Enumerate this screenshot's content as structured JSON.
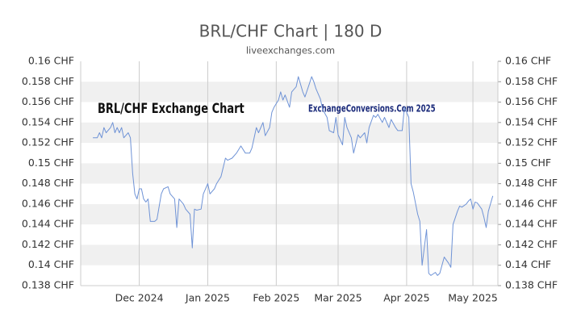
{
  "chart_data": {
    "type": "line",
    "title": "BRL/CHF Chart | 180 D",
    "subtitle": "liveexchanges.com",
    "annotations": [
      "BRL/CHF Exchange Chart",
      "ExchangeConversions.Com 2025"
    ],
    "xlim": [
      3.5,
      192.3
    ],
    "xticks": [
      {
        "value": 30,
        "label": "Dec 2024"
      },
      {
        "value": 61,
        "label": "Jan 2025"
      },
      {
        "value": 92,
        "label": "Feb 2025"
      },
      {
        "value": 120,
        "label": "Mar 2025"
      },
      {
        "value": 151,
        "label": "Apr 2025"
      },
      {
        "value": 181,
        "label": "May 2025"
      }
    ],
    "ylim": [
      0.138,
      0.16
    ],
    "yticks": [
      {
        "value": 0.138,
        "label": "0.138 CHF"
      },
      {
        "value": 0.14,
        "label": "0.14 CHF"
      },
      {
        "value": 0.142,
        "label": "0.142 CHF"
      },
      {
        "value": 0.144,
        "label": "0.144 CHF"
      },
      {
        "value": 0.146,
        "label": "0.146 CHF"
      },
      {
        "value": 0.148,
        "label": "0.148 CHF"
      },
      {
        "value": 0.15,
        "label": "0.15 CHF"
      },
      {
        "value": 0.152,
        "label": "0.152 CHF"
      },
      {
        "value": 0.154,
        "label": "0.154 CHF"
      },
      {
        "value": 0.156,
        "label": "0.156 CHF"
      },
      {
        "value": 0.158,
        "label": "0.158 CHF"
      },
      {
        "value": 0.16,
        "label": "0.16 CHF"
      }
    ],
    "grid": true,
    "color": "#6f93d6",
    "x": [
      9,
      11,
      12,
      13,
      14,
      15,
      17,
      18,
      19,
      20,
      21,
      22,
      23,
      25,
      26,
      27,
      28,
      29,
      30,
      31,
      32,
      33,
      34,
      35,
      37,
      38,
      40,
      41,
      43,
      44,
      46,
      47,
      48,
      50,
      51,
      53,
      54,
      55,
      56,
      58,
      59,
      61,
      62,
      64,
      65,
      67,
      69,
      70,
      72,
      74,
      76,
      78,
      80,
      81,
      83,
      84,
      86,
      87,
      89,
      90,
      91,
      93,
      94,
      95,
      96,
      98,
      99,
      101,
      102,
      104,
      105,
      107,
      108,
      109,
      110,
      112,
      113,
      115,
      116,
      118,
      119,
      120,
      122,
      123,
      124,
      126,
      127,
      129,
      130,
      132,
      133,
      134,
      136,
      137,
      138,
      140,
      141,
      143,
      144,
      146,
      147,
      149,
      150,
      152,
      153,
      154,
      156,
      157,
      158,
      160,
      161,
      162,
      164,
      165,
      166,
      168,
      169,
      170,
      171,
      172,
      174,
      175,
      176,
      178,
      179,
      180,
      181,
      182,
      183,
      185,
      186,
      187,
      188,
      190
    ],
    "values": [
      0.1525,
      0.1525,
      0.153,
      0.1525,
      0.1535,
      0.153,
      0.1535,
      0.154,
      0.153,
      0.1535,
      0.153,
      0.1535,
      0.1525,
      0.153,
      0.1525,
      0.149,
      0.147,
      0.1465,
      0.1475,
      0.1475,
      0.1465,
      0.1462,
      0.1465,
      0.1443,
      0.1443,
      0.1445,
      0.147,
      0.1475,
      0.1477,
      0.147,
      0.1465,
      0.1437,
      0.1465,
      0.146,
      0.1455,
      0.145,
      0.1417,
      0.1455,
      0.1454,
      0.1455,
      0.147,
      0.148,
      0.147,
      0.1475,
      0.148,
      0.1487,
      0.1505,
      0.1503,
      0.1505,
      0.151,
      0.1517,
      0.151,
      0.151,
      0.1515,
      0.1535,
      0.153,
      0.154,
      0.1527,
      0.1535,
      0.155,
      0.1555,
      0.1562,
      0.157,
      0.1562,
      0.1567,
      0.1555,
      0.157,
      0.1575,
      0.1585,
      0.157,
      0.1565,
      0.1578,
      0.1585,
      0.158,
      0.1573,
      0.1563,
      0.1553,
      0.1545,
      0.1532,
      0.153,
      0.1545,
      0.1528,
      0.1518,
      0.1545,
      0.1535,
      0.1525,
      0.151,
      0.1528,
      0.1525,
      0.153,
      0.152,
      0.1535,
      0.1547,
      0.1545,
      0.1548,
      0.154,
      0.1545,
      0.1535,
      0.1543,
      0.1535,
      0.1532,
      0.1532,
      0.1555,
      0.1545,
      0.148,
      0.1472,
      0.145,
      0.1443,
      0.14,
      0.1435,
      0.1392,
      0.139,
      0.1393,
      0.139,
      0.1392,
      0.1408,
      0.1405,
      0.1402,
      0.1398,
      0.144,
      0.1453,
      0.1458,
      0.1457,
      0.146,
      0.1463,
      0.1465,
      0.1455,
      0.1462,
      0.1461,
      0.1455,
      0.1447,
      0.1437,
      0.1453,
      0.1468
    ]
  }
}
